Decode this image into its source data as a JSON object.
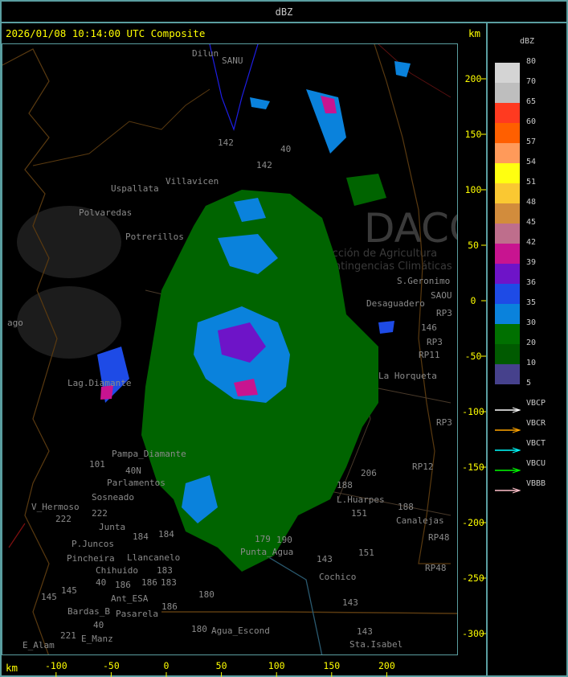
{
  "header": {
    "title": "dBZ"
  },
  "main": {
    "title": "2026/01/08 10:14:00 UTC Composite",
    "unit_top": "km",
    "unit_bottom": "km",
    "x_ticks": [
      -100,
      -50,
      0,
      50,
      100,
      150,
      200
    ],
    "y_ticks": [
      200,
      150,
      100,
      50,
      0,
      -50,
      -100,
      -150,
      -200,
      -250,
      -300
    ]
  },
  "map_labels": [
    "Dilun",
    "SANU",
    "142",
    "142",
    "40",
    "Villavicen",
    "Uspallata",
    "Polvaredas",
    "Potrerillos",
    "S.Geronimo",
    "SAOU",
    "Desaguadero",
    "RP3",
    "146",
    "RP3",
    "RP11",
    "La Horqueta",
    "RP3",
    "RP12",
    "206",
    "188",
    "L.Huarpes",
    "151",
    "188",
    "Canalejas",
    "RP48",
    "RP48",
    "151",
    "143",
    "Cochico",
    "143",
    "143",
    "Sta.Isabel",
    "180",
    "Agua_Escond",
    "Punta_Agua",
    "179",
    "190",
    "184",
    "Llancanelo",
    "184",
    "183",
    "Chihuido",
    "186",
    "186",
    "40",
    "Ant_ESA",
    "183",
    "180",
    "186",
    "145",
    "145",
    "Bardas_B",
    "40",
    "E_Manz",
    "221",
    "E_Alam",
    "Pasarela",
    "V_Hermoso",
    "222",
    "222",
    "Junta",
    "P.Juncos",
    "Pincheira",
    "Sosneado",
    "Parlamentos",
    "40N",
    "Pampa_Diamante",
    "101",
    "Lag.Diamante",
    "ago"
  ],
  "watermark": {
    "brand": "DACC",
    "line1": "Dirección de Agricultura",
    "line2": "y Contingencias Climáticas"
  },
  "legend": {
    "unit": "dBZ",
    "labels": [
      "80",
      "70",
      "65",
      "60",
      "57",
      "54",
      "51",
      "48",
      "45",
      "42",
      "39",
      "36",
      "35",
      "30",
      "20",
      "10",
      "5"
    ],
    "colors": [
      "#d4d4d4",
      "#bebebe",
      "#ff3a20",
      "#ff5f00",
      "#ff9a5a",
      "#ffff10",
      "#fac832",
      "#d28c3c",
      "#be6e8c",
      "#c81490",
      "#6e14c8",
      "#1e4be6",
      "#0a82dc",
      "#007000",
      "#005a00",
      "#46418c"
    ],
    "radars": [
      {
        "name": "VBCP",
        "color": "#ffffff"
      },
      {
        "name": "VBCR",
        "color": "#ffa500"
      },
      {
        "name": "VBCT",
        "color": "#00ffff"
      },
      {
        "name": "VBCU",
        "color": "#00ff00"
      },
      {
        "name": "VBBB",
        "color": "#ffc0cb"
      }
    ]
  }
}
